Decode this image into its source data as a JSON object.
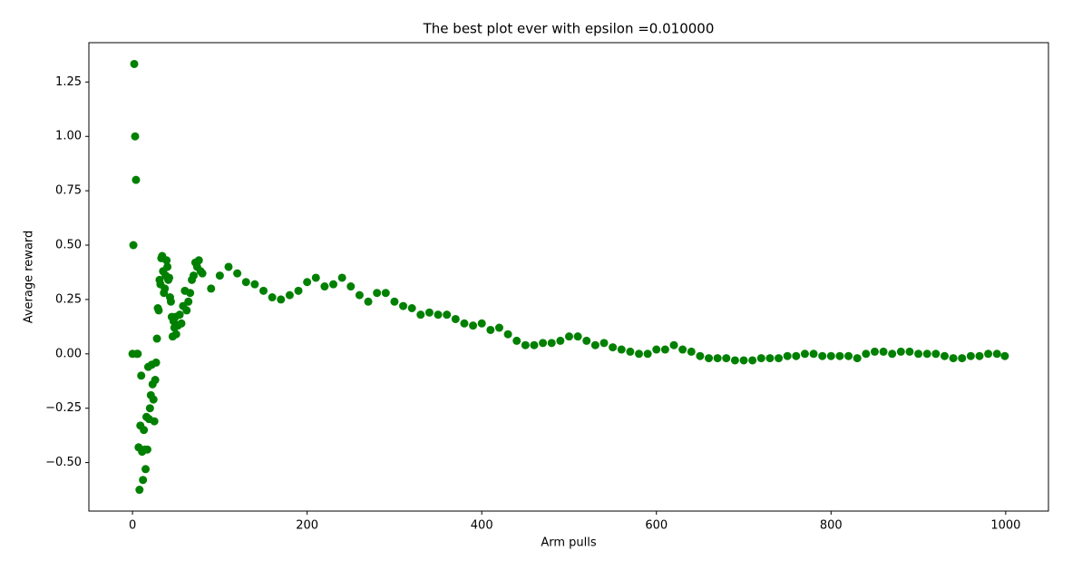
{
  "chart_data": {
    "type": "scatter",
    "title": "The best plot ever with epsilon =0.010000",
    "x_label": "Arm pulls",
    "y_label": "Average reward",
    "color": "#008000",
    "x": [
      0,
      1,
      2,
      3,
      4,
      5,
      6,
      7,
      8,
      9,
      10,
      11,
      12,
      13,
      14,
      15,
      16,
      17,
      18,
      19,
      20,
      21,
      22,
      23,
      24,
      25,
      26,
      27,
      28,
      29,
      30,
      31,
      32,
      33,
      34,
      35,
      36,
      37,
      38,
      39,
      40,
      41,
      42,
      43,
      44,
      45,
      46,
      47,
      48,
      49,
      50,
      52,
      54,
      56,
      58,
      60,
      62,
      64,
      66,
      68,
      70,
      72,
      74,
      76,
      78,
      80,
      90,
      100,
      110,
      120,
      130,
      140,
      150,
      160,
      170,
      180,
      190,
      200,
      210,
      220,
      230,
      240,
      250,
      260,
      270,
      280,
      290,
      300,
      310,
      320,
      330,
      340,
      350,
      360,
      370,
      380,
      390,
      400,
      410,
      420,
      430,
      440,
      450,
      460,
      470,
      480,
      490,
      500,
      510,
      520,
      530,
      540,
      550,
      560,
      570,
      580,
      590,
      600,
      610,
      620,
      630,
      640,
      650,
      660,
      670,
      680,
      690,
      700,
      710,
      720,
      730,
      740,
      750,
      760,
      770,
      780,
      790,
      800,
      810,
      820,
      830,
      840,
      850,
      860,
      870,
      880,
      890,
      900,
      910,
      920,
      930,
      940,
      950,
      960,
      970,
      980,
      990,
      999
    ],
    "values": [
      0,
      0.5,
      1.333,
      1.0,
      0.8,
      0,
      0,
      -0.43,
      -0.625,
      -0.33,
      -0.1,
      -0.45,
      -0.58,
      -0.35,
      -0.44,
      -0.53,
      -0.29,
      -0.44,
      -0.06,
      -0.3,
      -0.25,
      -0.19,
      -0.05,
      -0.14,
      -0.21,
      -0.31,
      -0.12,
      -0.04,
      0.07,
      0.21,
      0.2,
      0.34,
      0.32,
      0.44,
      0.45,
      0.38,
      0.28,
      0.3,
      0.36,
      0.43,
      0.4,
      0.34,
      0.35,
      0.26,
      0.24,
      0.17,
      0.08,
      0.15,
      0.12,
      0.17,
      0.09,
      0.13,
      0.18,
      0.14,
      0.22,
      0.29,
      0.2,
      0.24,
      0.28,
      0.34,
      0.36,
      0.42,
      0.4,
      0.43,
      0.38,
      0.37,
      0.3,
      0.36,
      0.4,
      0.37,
      0.33,
      0.32,
      0.29,
      0.26,
      0.25,
      0.27,
      0.29,
      0.33,
      0.35,
      0.31,
      0.32,
      0.35,
      0.31,
      0.27,
      0.24,
      0.28,
      0.28,
      0.24,
      0.22,
      0.21,
      0.18,
      0.19,
      0.18,
      0.18,
      0.16,
      0.14,
      0.13,
      0.14,
      0.11,
      0.12,
      0.09,
      0.06,
      0.04,
      0.04,
      0.05,
      0.05,
      0.06,
      0.08,
      0.08,
      0.06,
      0.04,
      0.05,
      0.03,
      0.02,
      0.01,
      0,
      0,
      0.02,
      0.02,
      0.04,
      0.02,
      0.01,
      -0.01,
      -0.02,
      -0.02,
      -0.02,
      -0.03,
      -0.03,
      -0.03,
      -0.02,
      -0.02,
      -0.02,
      -0.01,
      -0.01,
      0,
      0,
      -0.01,
      -0.01,
      -0.01,
      -0.01,
      -0.02,
      0,
      0.01,
      0.01,
      0,
      0.01,
      0.01,
      0,
      0,
      0,
      -0.01,
      -0.02,
      -0.02,
      -0.01,
      -0.01,
      0,
      0,
      -0.01
    ],
    "xlim": [
      -49.95,
      1048.95
    ],
    "xticks": [
      0,
      200,
      400,
      600,
      800,
      1000
    ],
    "ylim": [
      -0.723,
      1.431
    ],
    "yticks": [
      {
        "value": -0.5,
        "label": "−0.50"
      },
      {
        "value": -0.25,
        "label": "−0.25"
      },
      {
        "value": 0,
        "label": "0.00"
      },
      {
        "value": 0.25,
        "label": "0.25"
      },
      {
        "value": 0.5,
        "label": "0.50"
      },
      {
        "value": 0.75,
        "label": "0.75"
      },
      {
        "value": 1.0,
        "label": "1.00"
      },
      {
        "value": 1.25,
        "label": "1.25"
      }
    ]
  }
}
